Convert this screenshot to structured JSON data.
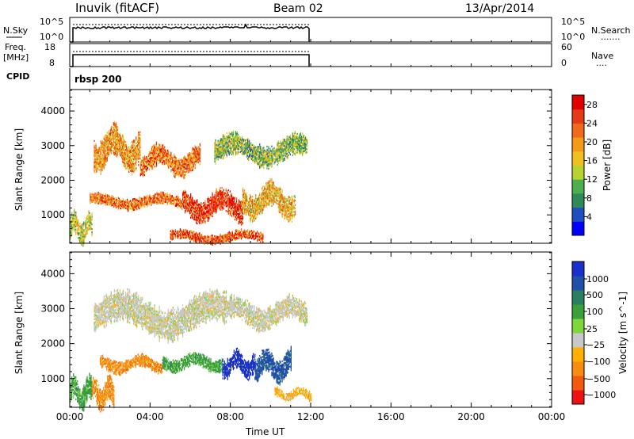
{
  "header": {
    "station": "Inuvik (fitACF)",
    "beam": "Beam 02",
    "date": "13/Apr/2014"
  },
  "panels": {
    "nsky": {
      "left_label": "N.Sky",
      "left_ticks": [
        "10^5",
        "10^0"
      ],
      "right_ticks": [
        "10^5",
        "10^0"
      ],
      "right_label": "N.Search",
      "right_label_line": "......."
    },
    "freq": {
      "left_label_1": "Freq.",
      "left_label_2": "[MHz]",
      "left_ticks": [
        "18",
        "8"
      ],
      "right_ticks": [
        "60",
        "0"
      ],
      "right_label": "Nave",
      "right_label_line": "...."
    },
    "cpid": {
      "label": "CPID",
      "value": "rbsp 200"
    }
  },
  "colors": {
    "power": [
      "#0000ff",
      "#1f4fbf",
      "#2e8b57",
      "#4caf50",
      "#b8d230",
      "#f0c020",
      "#f39a1a",
      "#ef6a1a",
      "#e53a15",
      "#e00000"
    ],
    "velocity": [
      "#ee1111",
      "#f25a10",
      "#f78c10",
      "#ffb000",
      "#c8c8c8",
      "#7fd63a",
      "#3aa03a",
      "#2a7f63",
      "#2050a8",
      "#1a2fcc"
    ]
  },
  "chart_data": [
    {
      "type": "heatmap",
      "title": "Power",
      "xlabel": "Time UT",
      "ylabel": "Slant Range [km]",
      "x_ticks": [
        "00:00",
        "04:00",
        "08:00",
        "12:00",
        "16:00",
        "20:00",
        "00:00"
      ],
      "xlim_hours": [
        0,
        24
      ],
      "y_ticks": [
        1000,
        2000,
        3000,
        4000
      ],
      "ylim_km": [
        180,
        4620
      ],
      "data_extent_hours": [
        0,
        12
      ],
      "colorbar": {
        "label": "Power [dB]",
        "tick_labels": [
          "4",
          "8",
          "12",
          "16",
          "20",
          "24",
          "28"
        ],
        "range": [
          0,
          30
        ]
      },
      "echo_bands": [
        {
          "t_start": 0.0,
          "t_end": 1.1,
          "range_km": [
            250,
            950
          ],
          "value": 14
        },
        {
          "t_start": 1.0,
          "t_end": 5.6,
          "range_km": [
            1200,
            1550
          ],
          "value": 22
        },
        {
          "t_start": 5.6,
          "t_end": 8.6,
          "range_km": [
            900,
            1600
          ],
          "value": 26
        },
        {
          "t_start": 8.6,
          "t_end": 11.2,
          "range_km": [
            1000,
            1800
          ],
          "value": 18
        },
        {
          "t_start": 1.2,
          "t_end": 3.5,
          "range_km": [
            2400,
            3400
          ],
          "value": 20
        },
        {
          "t_start": 3.5,
          "t_end": 6.5,
          "range_km": [
            2200,
            2900
          ],
          "value": 22
        },
        {
          "t_start": 7.2,
          "t_end": 11.8,
          "range_km": [
            2500,
            3200
          ],
          "value": 12
        },
        {
          "t_start": 5.0,
          "t_end": 9.6,
          "range_km": [
            200,
            500
          ],
          "value": 24
        }
      ]
    },
    {
      "type": "heatmap",
      "title": "Velocity",
      "xlabel": "Time UT",
      "ylabel": "Slant Range [km]",
      "x_ticks": [
        "00:00",
        "04:00",
        "08:00",
        "12:00",
        "16:00",
        "20:00",
        "00:00"
      ],
      "xlim_hours": [
        0,
        24
      ],
      "y_ticks": [
        1000,
        2000,
        3000,
        4000
      ],
      "ylim_km": [
        180,
        4620
      ],
      "data_extent_hours": [
        0,
        12
      ],
      "colorbar": {
        "label": "Velocity [m s^-1]",
        "tick_labels": [
          "1000",
          "500",
          "100",
          "25",
          "−25",
          "−100",
          "−500",
          "−1000"
        ]
      },
      "echo_bands": [
        {
          "t_start": 0.0,
          "t_end": 1.1,
          "range_km": [
            200,
            950
          ],
          "value": "100"
        },
        {
          "t_start": 1.1,
          "t_end": 2.2,
          "range_km": [
            200,
            900
          ],
          "value": "-100"
        },
        {
          "t_start": 1.5,
          "t_end": 4.6,
          "range_km": [
            1200,
            1600
          ],
          "value": "-100"
        },
        {
          "t_start": 4.6,
          "t_end": 7.6,
          "range_km": [
            1250,
            1650
          ],
          "value": "100"
        },
        {
          "t_start": 7.6,
          "t_end": 9.2,
          "range_km": [
            1100,
            1700
          ],
          "value": "1000"
        },
        {
          "t_start": 9.2,
          "t_end": 11.0,
          "range_km": [
            1000,
            1700
          ],
          "value": "500"
        },
        {
          "t_start": 1.2,
          "t_end": 7.8,
          "range_km": [
            2300,
            3300
          ],
          "value": "25"
        },
        {
          "t_start": 7.8,
          "t_end": 11.8,
          "range_km": [
            2500,
            3200
          ],
          "value": "25"
        },
        {
          "t_start": 10.2,
          "t_end": 12.0,
          "range_km": [
            400,
            700
          ],
          "value": "-25"
        }
      ]
    }
  ]
}
